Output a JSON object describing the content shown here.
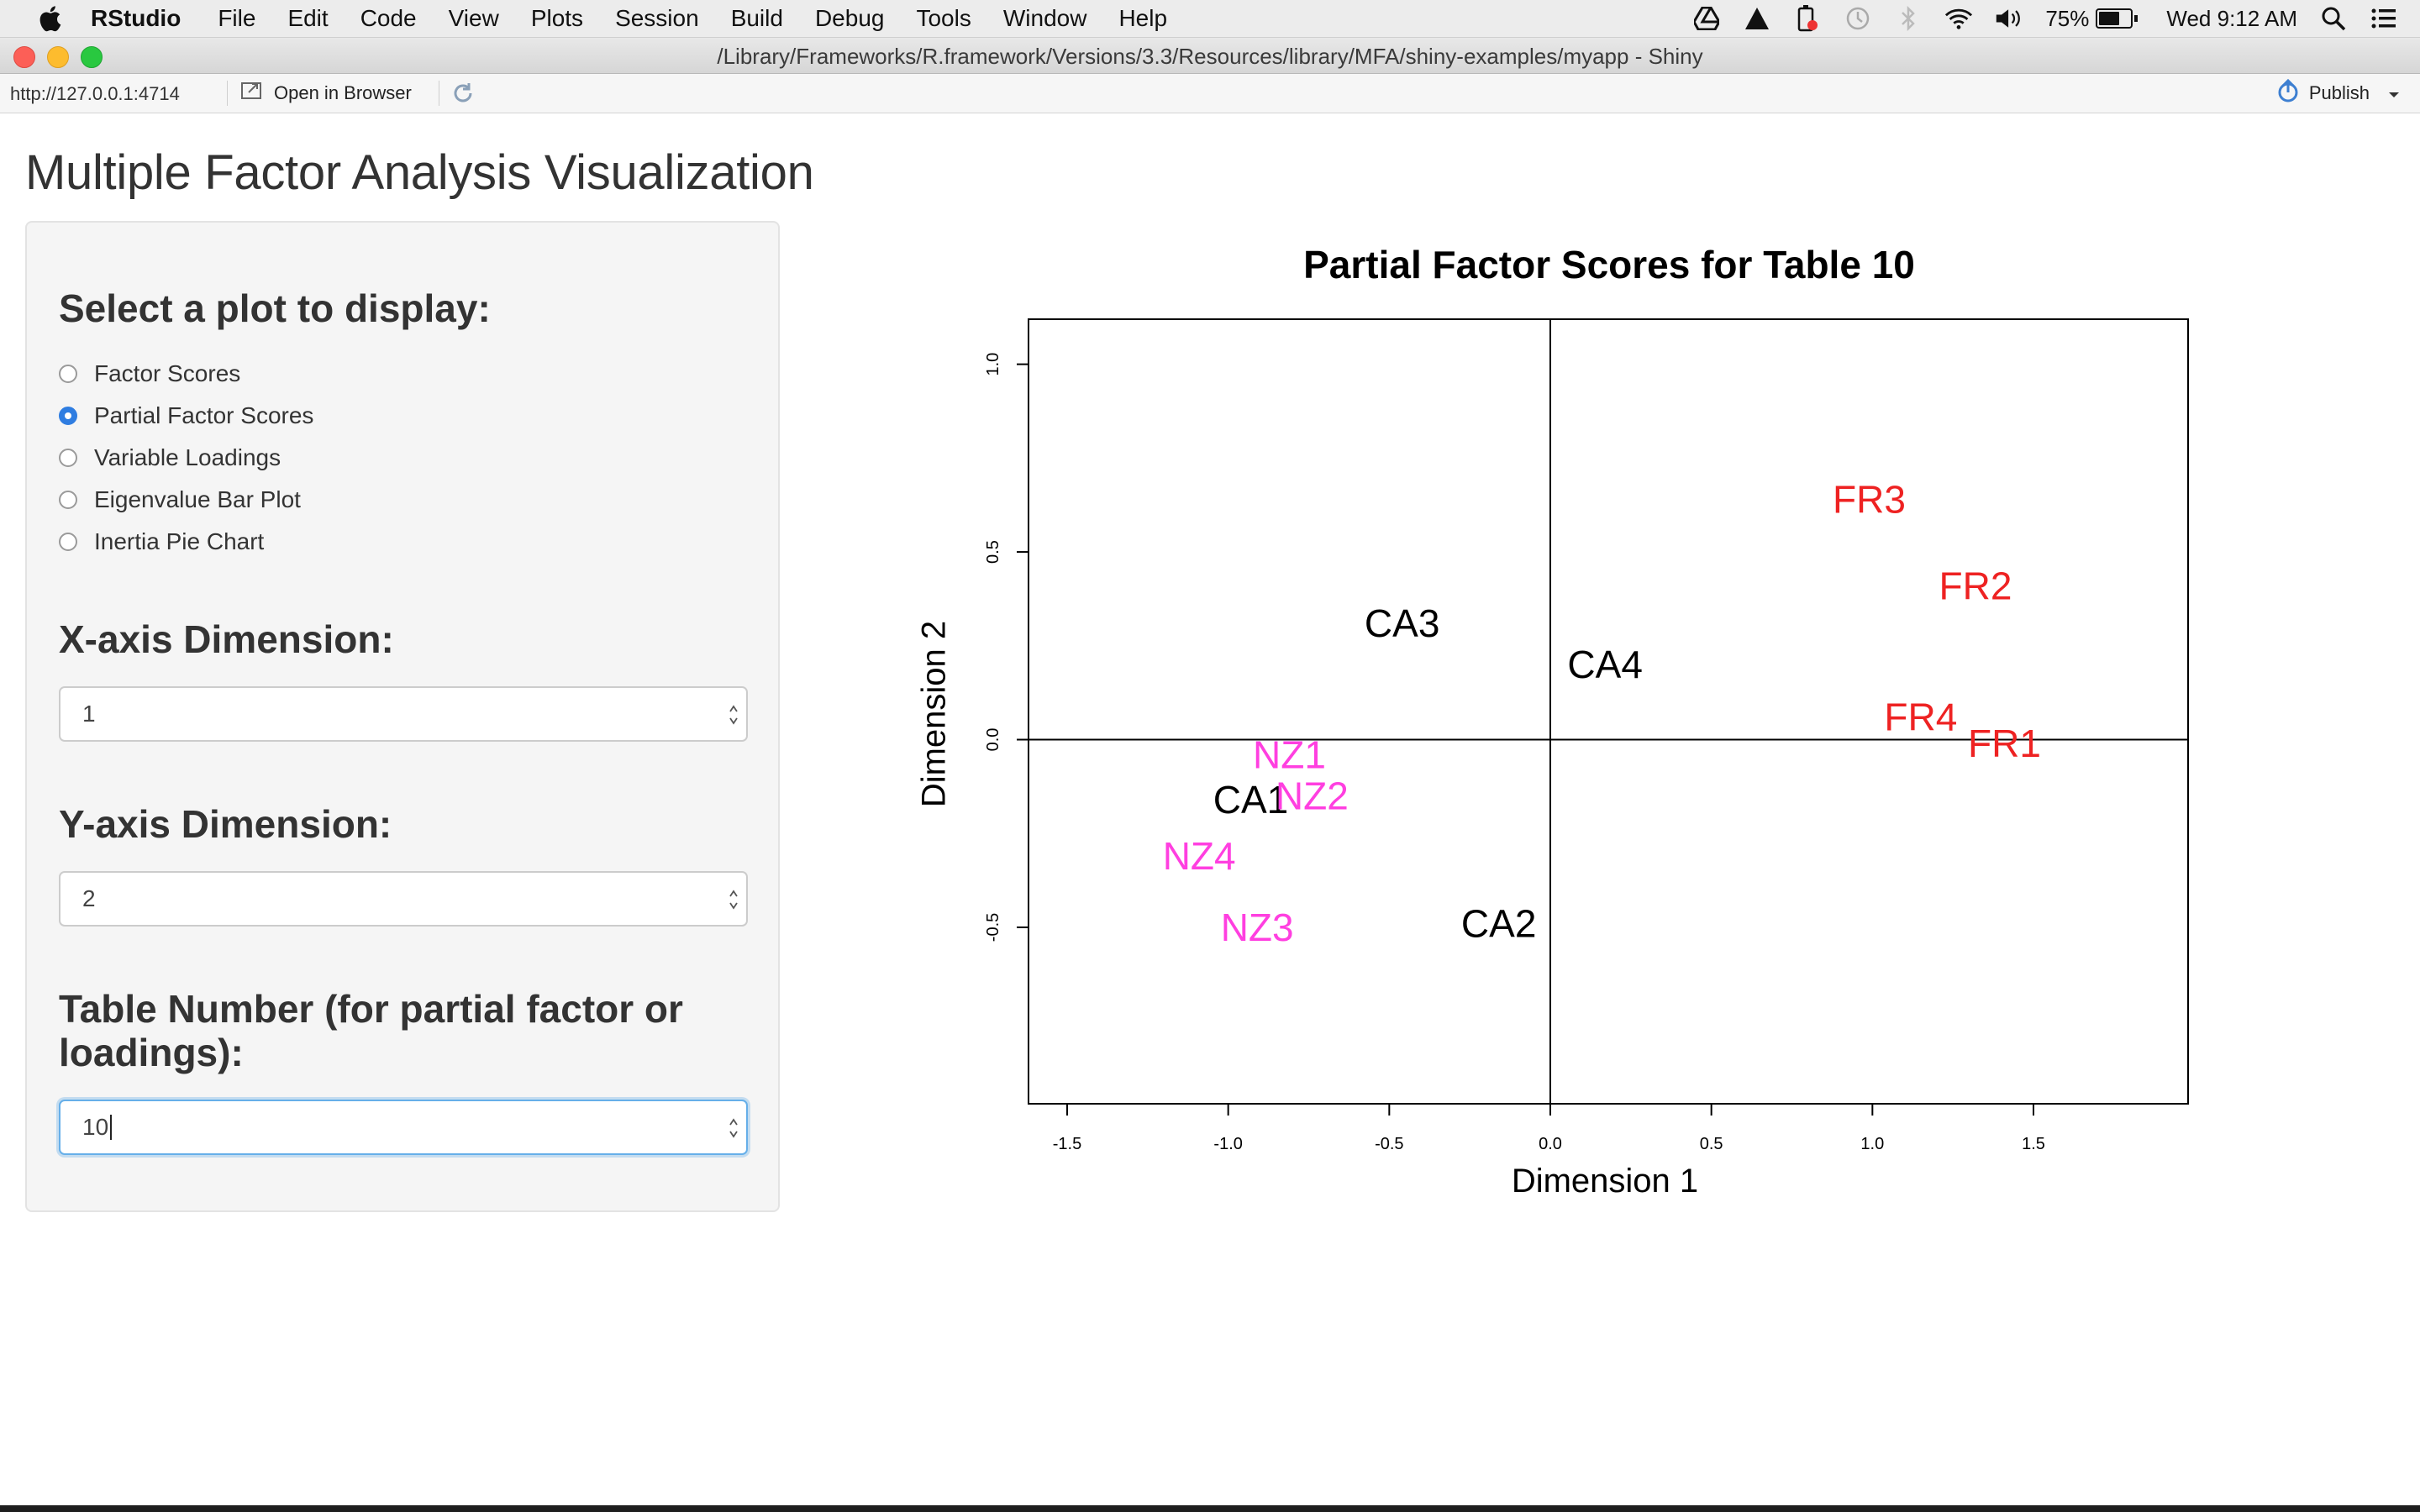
{
  "menubar": {
    "app": "RStudio",
    "items": [
      "File",
      "Edit",
      "Code",
      "View",
      "Plots",
      "Session",
      "Build",
      "Debug",
      "Tools",
      "Window",
      "Help"
    ],
    "battery": "75%",
    "battery_level": 0.75,
    "clock": "Wed 9:12 AM",
    "status_icons": [
      "google-drive-icon",
      "warning-icon",
      "battery-alert-icon",
      "time-machine-icon",
      "bluetooth-icon",
      "wifi-icon",
      "volume-icon",
      "battery-icon",
      "search-icon",
      "list-icon"
    ]
  },
  "window": {
    "title": "/Library/Frameworks/R.framework/Versions/3.3/Resources/library/MFA/shiny-examples/myapp - Shiny"
  },
  "toolbar": {
    "url": "http://127.0.0.1:4714",
    "open_in_browser": "Open in Browser",
    "publish": "Publish"
  },
  "app": {
    "title": "Multiple Factor Analysis Visualization",
    "plot_select": {
      "label": "Select a plot to display:",
      "options": [
        {
          "label": "Factor Scores",
          "selected": false
        },
        {
          "label": "Partial Factor Scores",
          "selected": true
        },
        {
          "label": "Variable Loadings",
          "selected": false
        },
        {
          "label": "Eigenvalue Bar Plot",
          "selected": false
        },
        {
          "label": "Inertia Pie Chart",
          "selected": false
        }
      ]
    },
    "x_dim": {
      "label": "X-axis Dimension:",
      "value": "1"
    },
    "y_dim": {
      "label": "Y-axis Dimension:",
      "value": "2"
    },
    "table_number": {
      "label_line1": "Table Number (for partial factor or",
      "label_line2": "loadings):",
      "value": "10"
    }
  },
  "chart_data": {
    "type": "scatter",
    "title": "Partial Factor Scores for Table 10",
    "xlabel": "Dimension 1",
    "ylabel": "Dimension 2",
    "xlim": [
      -1.62,
      1.98
    ],
    "ylim": [
      -0.97,
      1.12
    ],
    "xticks": [
      -1.5,
      -1.0,
      -0.5,
      0.0,
      0.5,
      1.0,
      1.5
    ],
    "yticks": [
      -0.5,
      0.0,
      0.5,
      1.0
    ],
    "grid": false,
    "reference_lines": {
      "x": 0,
      "y": 0
    },
    "marker": "text-label",
    "colors": {
      "CA": "#000000",
      "NZ": "#ff3fe0",
      "FR": "#ee2222"
    },
    "points": [
      {
        "label": "FR1",
        "x": 1.41,
        "y": -0.01,
        "group": "FR"
      },
      {
        "label": "FR2",
        "x": 1.32,
        "y": 0.41,
        "group": "FR"
      },
      {
        "label": "FR3",
        "x": 0.99,
        "y": 0.64,
        "group": "FR"
      },
      {
        "label": "FR4",
        "x": 1.15,
        "y": 0.06,
        "group": "FR"
      },
      {
        "label": "CA1",
        "x": -0.93,
        "y": -0.16,
        "group": "CA"
      },
      {
        "label": "CA2",
        "x": -0.16,
        "y": -0.49,
        "group": "CA"
      },
      {
        "label": "CA3",
        "x": -0.46,
        "y": 0.31,
        "group": "CA"
      },
      {
        "label": "CA4",
        "x": 0.17,
        "y": 0.2,
        "group": "CA"
      },
      {
        "label": "NZ1",
        "x": -0.81,
        "y": -0.04,
        "group": "NZ"
      },
      {
        "label": "NZ2",
        "x": -0.74,
        "y": -0.15,
        "group": "NZ"
      },
      {
        "label": "NZ3",
        "x": -0.91,
        "y": -0.5,
        "group": "NZ"
      },
      {
        "label": "NZ4",
        "x": -1.09,
        "y": -0.31,
        "group": "NZ"
      }
    ]
  }
}
